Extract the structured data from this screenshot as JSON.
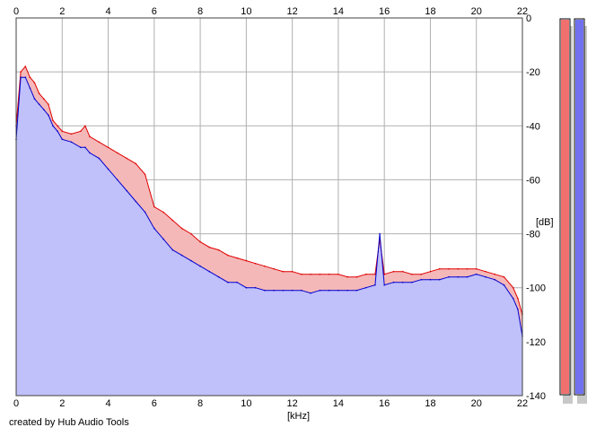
{
  "chart_data": {
    "type": "area",
    "xlabel": "[kHz]",
    "ylabel": "[dB]",
    "xlim": [
      0,
      22
    ],
    "ylim": [
      -140,
      0
    ],
    "x_ticks": [
      0,
      2,
      4,
      6,
      8,
      10,
      12,
      14,
      16,
      18,
      20,
      22
    ],
    "y_ticks": [
      0,
      -20,
      -40,
      -60,
      -80,
      -100,
      -120,
      -140
    ],
    "grid": true,
    "series": [
      {
        "color": "#e00000",
        "fill": "#f4b8b8",
        "x": [
          0,
          0.2,
          0.4,
          0.6,
          0.8,
          1.0,
          1.2,
          1.4,
          1.6,
          1.8,
          2.0,
          2.4,
          2.8,
          3.0,
          3.2,
          3.6,
          4.0,
          4.4,
          4.8,
          5.2,
          5.6,
          6.0,
          6.4,
          6.8,
          7.2,
          7.6,
          8.0,
          8.4,
          8.8,
          9.2,
          9.6,
          10.0,
          10.4,
          10.8,
          11.2,
          11.6,
          12.0,
          12.4,
          12.8,
          13.2,
          13.6,
          14.0,
          14.4,
          14.8,
          15.2,
          15.6,
          15.8,
          16.0,
          16.4,
          16.8,
          17.2,
          17.6,
          18.0,
          18.4,
          18.8,
          19.2,
          19.6,
          20.0,
          20.4,
          20.8,
          21.2,
          21.6,
          21.8,
          22.0
        ],
        "values": [
          -40,
          -20,
          -18,
          -22,
          -24,
          -28,
          -30,
          -32,
          -38,
          -40,
          -42,
          -43,
          -42,
          -40,
          -44,
          -46,
          -48,
          -50,
          -52,
          -54,
          -58,
          -70,
          -72,
          -75,
          -78,
          -80,
          -83,
          -85,
          -86,
          -88,
          -89,
          -90,
          -91,
          -92,
          -93,
          -94,
          -94,
          -95,
          -95,
          -95,
          -95,
          -95,
          -96,
          -96,
          -95,
          -95,
          -82,
          -95,
          -94,
          -94,
          -95,
          -95,
          -94,
          -93,
          -93,
          -93,
          -93,
          -93,
          -94,
          -95,
          -96,
          -100,
          -104,
          -110
        ]
      },
      {
        "color": "#0000d0",
        "fill": "#c0c0fa",
        "x": [
          0,
          0.2,
          0.4,
          0.6,
          0.8,
          1.0,
          1.2,
          1.4,
          1.6,
          1.8,
          2.0,
          2.4,
          2.8,
          3.0,
          3.2,
          3.6,
          4.0,
          4.4,
          4.8,
          5.2,
          5.6,
          6.0,
          6.4,
          6.8,
          7.2,
          7.6,
          8.0,
          8.4,
          8.8,
          9.2,
          9.6,
          10.0,
          10.4,
          10.8,
          11.2,
          11.6,
          12.0,
          12.4,
          12.8,
          13.2,
          13.6,
          14.0,
          14.4,
          14.8,
          15.2,
          15.6,
          15.8,
          16.0,
          16.4,
          16.8,
          17.2,
          17.6,
          18.0,
          18.4,
          18.8,
          19.2,
          19.6,
          20.0,
          20.4,
          20.8,
          21.2,
          21.6,
          21.8,
          22.0
        ],
        "values": [
          -45,
          -22,
          -22,
          -26,
          -30,
          -32,
          -34,
          -36,
          -40,
          -42,
          -45,
          -46,
          -48,
          -48,
          -50,
          -52,
          -56,
          -60,
          -64,
          -68,
          -72,
          -78,
          -82,
          -86,
          -88,
          -90,
          -92,
          -94,
          -96,
          -98,
          -98,
          -100,
          -100,
          -101,
          -101,
          -101,
          -101,
          -101,
          -102,
          -101,
          -101,
          -101,
          -101,
          -101,
          -100,
          -99,
          -80,
          -99,
          -98,
          -98,
          -98,
          -97,
          -97,
          -97,
          -96,
          -96,
          -96,
          -95,
          -96,
          -97,
          -99,
          -104,
          -108,
          -118
        ]
      }
    ],
    "meters": [
      {
        "color": "#f07070",
        "level_db": 0
      },
      {
        "color": "#7070f0",
        "level_db": 0
      }
    ]
  },
  "credit": "created by Hub Audio Tools"
}
